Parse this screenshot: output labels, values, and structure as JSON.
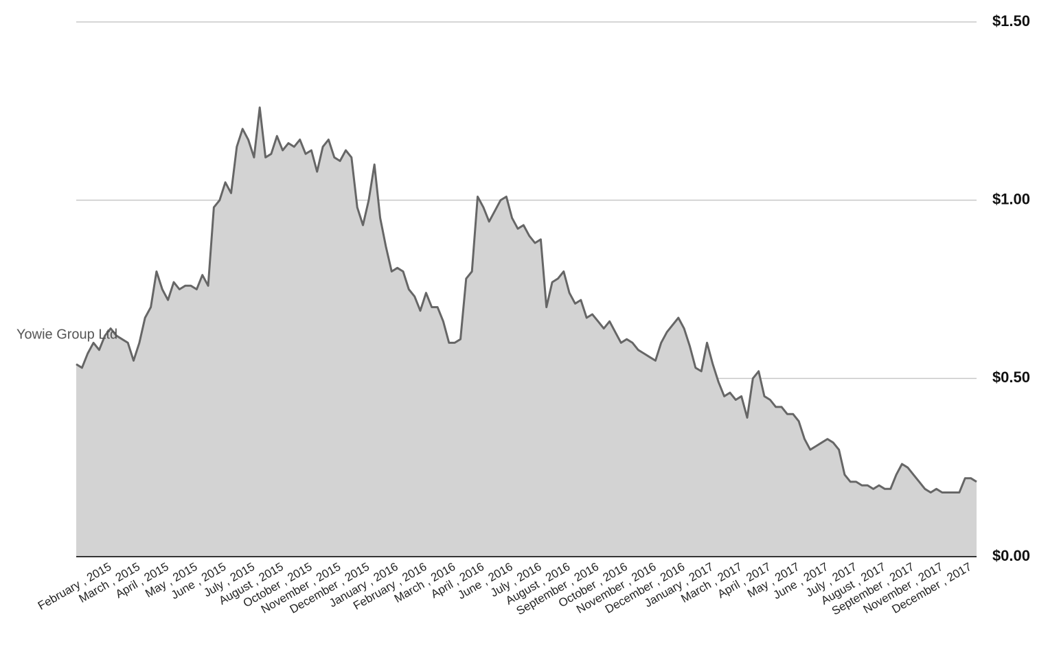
{
  "chart_data": {
    "type": "area",
    "categories": [
      null,
      null,
      null,
      null,
      null,
      null,
      "February , 2015",
      null,
      null,
      null,
      null,
      "March , 2015",
      null,
      null,
      null,
      null,
      "April , 2015",
      null,
      null,
      null,
      null,
      "May , 2015",
      null,
      null,
      null,
      null,
      "June , 2015",
      null,
      null,
      null,
      null,
      "July , 2015",
      null,
      null,
      null,
      null,
      "August , 2015",
      null,
      null,
      null,
      null,
      "October , 2015",
      null,
      null,
      null,
      null,
      "November , 2015",
      null,
      null,
      null,
      null,
      "December , 2015",
      null,
      null,
      null,
      null,
      "January , 2016",
      null,
      null,
      null,
      null,
      "February , 2016",
      null,
      null,
      null,
      null,
      "March , 2016",
      null,
      null,
      null,
      null,
      "April , 2016",
      null,
      null,
      null,
      null,
      "June , 2016",
      null,
      null,
      null,
      null,
      "July , 2016",
      null,
      null,
      null,
      null,
      "August , 2016",
      null,
      null,
      null,
      null,
      "September , 2016",
      null,
      null,
      null,
      null,
      "October , 2016",
      null,
      null,
      null,
      null,
      "November , 2016",
      null,
      null,
      null,
      null,
      "December , 2016",
      null,
      null,
      null,
      null,
      "January , 2017",
      null,
      null,
      null,
      null,
      "March , 2017",
      null,
      null,
      null,
      null,
      "April , 2017",
      null,
      null,
      null,
      null,
      "May , 2017",
      null,
      null,
      null,
      null,
      "June , 2017",
      null,
      null,
      null,
      null,
      "July , 2017",
      null,
      null,
      null,
      null,
      "August , 2017",
      null,
      null,
      null,
      null,
      "September , 2017",
      null,
      null,
      null,
      null,
      "November , 2017",
      null,
      null,
      null,
      null,
      "December , 2017",
      null
    ],
    "series": [
      {
        "name": "Yowie Group Ltd",
        "color": "#666666",
        "fill": "#d3d3d3",
        "values": [
          0.54,
          0.53,
          0.57,
          0.6,
          0.58,
          0.62,
          0.64,
          0.62,
          0.61,
          0.6,
          0.55,
          0.6,
          0.67,
          0.7,
          0.8,
          0.75,
          0.72,
          0.77,
          0.75,
          0.76,
          0.76,
          0.75,
          0.79,
          0.76,
          0.98,
          1.0,
          1.05,
          1.02,
          1.15,
          1.2,
          1.17,
          1.12,
          1.26,
          1.12,
          1.13,
          1.18,
          1.14,
          1.16,
          1.15,
          1.17,
          1.13,
          1.14,
          1.08,
          1.15,
          1.17,
          1.12,
          1.11,
          1.14,
          1.12,
          0.98,
          0.93,
          1.0,
          1.1,
          0.95,
          0.87,
          0.8,
          0.81,
          0.8,
          0.75,
          0.73,
          0.69,
          0.74,
          0.7,
          0.7,
          0.66,
          0.6,
          0.6,
          0.61,
          0.78,
          0.8,
          1.01,
          0.98,
          0.94,
          0.97,
          1.0,
          1.01,
          0.95,
          0.92,
          0.93,
          0.9,
          0.88,
          0.89,
          0.7,
          0.77,
          0.78,
          0.8,
          0.74,
          0.71,
          0.72,
          0.67,
          0.68,
          0.66,
          0.64,
          0.66,
          0.63,
          0.6,
          0.61,
          0.6,
          0.58,
          0.57,
          0.56,
          0.55,
          0.6,
          0.63,
          0.65,
          0.67,
          0.64,
          0.59,
          0.53,
          0.52,
          0.6,
          0.54,
          0.49,
          0.45,
          0.46,
          0.44,
          0.45,
          0.39,
          0.5,
          0.52,
          0.45,
          0.44,
          0.42,
          0.42,
          0.4,
          0.4,
          0.38,
          0.33,
          0.3,
          0.31,
          0.32,
          0.33,
          0.32,
          0.3,
          0.23,
          0.21,
          0.21,
          0.2,
          0.2,
          0.19,
          0.2,
          0.19,
          0.19,
          0.23,
          0.26,
          0.25,
          0.23,
          0.21,
          0.19,
          0.18,
          0.19,
          0.18,
          0.18,
          0.18,
          0.18,
          0.22,
          0.22,
          0.21
        ]
      }
    ],
    "ylim": [
      0,
      1.5
    ],
    "yticks": [
      {
        "value": 0,
        "label": "$0.00"
      },
      {
        "value": 0.5,
        "label": "$0.50"
      },
      {
        "value": 1,
        "label": "$1.00"
      },
      {
        "value": 1.5,
        "label": "$1.50"
      }
    ],
    "grid": true
  }
}
